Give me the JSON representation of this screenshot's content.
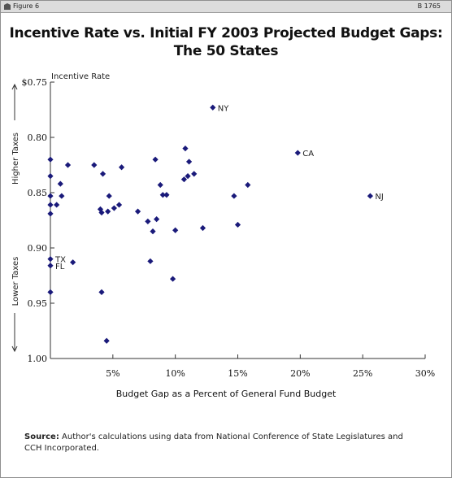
{
  "header": {
    "figure_label": "Figure 6",
    "figure_number": "B 1765"
  },
  "title_line1": "Incentive Rate vs. Initial FY 2003 Projected Budget Gaps:",
  "title_line2": "The 50 States",
  "side_labels": {
    "top": "Higher Taxes",
    "bottom": "Lower Taxes"
  },
  "source": {
    "label": "Source:",
    "text": "Author's calculations using data from National Conference of State Legislatures and CCH Incorporated."
  },
  "chart_data": {
    "type": "scatter",
    "xlabel": "Budget Gap as a Percent of General Fund Budget",
    "ylabel": "Incentive Rate",
    "xlim": [
      0,
      30
    ],
    "ylim": [
      0.75,
      1.0
    ],
    "y_inverted": true,
    "x_ticks": [
      "5%",
      "10%",
      "15%",
      "20%",
      "25%",
      "30%"
    ],
    "y_ticks": [
      "$0.75",
      "0.80",
      "0.85",
      "0.90",
      "0.95",
      "1.00"
    ],
    "grid": false,
    "points": [
      {
        "x": 13.0,
        "y": 0.773,
        "label": "NY"
      },
      {
        "x": 19.8,
        "y": 0.814,
        "label": "CA"
      },
      {
        "x": 25.6,
        "y": 0.853,
        "label": "NJ"
      },
      {
        "x": 0.0,
        "y": 0.91,
        "label": "TX"
      },
      {
        "x": 0.0,
        "y": 0.916,
        "label": "FL"
      },
      {
        "x": 0.0,
        "y": 0.82
      },
      {
        "x": 0.0,
        "y": 0.835
      },
      {
        "x": 0.0,
        "y": 0.853
      },
      {
        "x": 0.0,
        "y": 0.861
      },
      {
        "x": 0.0,
        "y": 0.869
      },
      {
        "x": 0.0,
        "y": 0.94
      },
      {
        "x": 0.5,
        "y": 0.861
      },
      {
        "x": 0.8,
        "y": 0.842
      },
      {
        "x": 0.9,
        "y": 0.853
      },
      {
        "x": 1.4,
        "y": 0.825
      },
      {
        "x": 1.8,
        "y": 0.913
      },
      {
        "x": 3.5,
        "y": 0.825
      },
      {
        "x": 4.0,
        "y": 0.865
      },
      {
        "x": 4.1,
        "y": 0.868
      },
      {
        "x": 4.2,
        "y": 0.833
      },
      {
        "x": 4.1,
        "y": 0.94
      },
      {
        "x": 4.5,
        "y": 0.984
      },
      {
        "x": 4.6,
        "y": 0.867
      },
      {
        "x": 4.7,
        "y": 0.853
      },
      {
        "x": 5.1,
        "y": 0.864
      },
      {
        "x": 5.5,
        "y": 0.861
      },
      {
        "x": 5.7,
        "y": 0.827
      },
      {
        "x": 7.0,
        "y": 0.867
      },
      {
        "x": 7.8,
        "y": 0.876
      },
      {
        "x": 8.0,
        "y": 0.912
      },
      {
        "x": 8.2,
        "y": 0.885
      },
      {
        "x": 8.4,
        "y": 0.82
      },
      {
        "x": 8.5,
        "y": 0.874
      },
      {
        "x": 8.8,
        "y": 0.843
      },
      {
        "x": 9.0,
        "y": 0.852
      },
      {
        "x": 9.3,
        "y": 0.852
      },
      {
        "x": 9.8,
        "y": 0.928
      },
      {
        "x": 10.0,
        "y": 0.884
      },
      {
        "x": 10.7,
        "y": 0.838
      },
      {
        "x": 10.8,
        "y": 0.81
      },
      {
        "x": 11.0,
        "y": 0.835
      },
      {
        "x": 11.1,
        "y": 0.822
      },
      {
        "x": 11.5,
        "y": 0.833
      },
      {
        "x": 12.2,
        "y": 0.882
      },
      {
        "x": 14.7,
        "y": 0.853
      },
      {
        "x": 15.0,
        "y": 0.879
      },
      {
        "x": 15.8,
        "y": 0.843
      }
    ]
  }
}
